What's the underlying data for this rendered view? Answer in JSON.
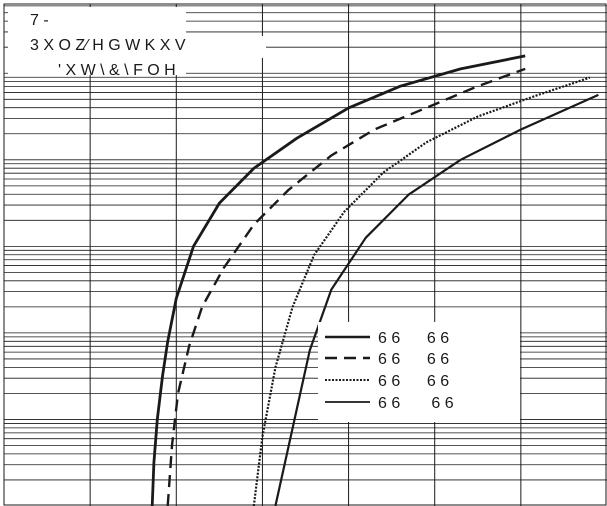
{
  "chart_data": {
    "type": "line",
    "title_lines": [
      "7 -",
      "3 X O Z∕ H G W K      X V",
      "' X W \\  & \\ F O H"
    ],
    "xlabel": "",
    "ylabel": "",
    "x_scale": "log",
    "y_scale": "log",
    "xlim": [
      0,
      7
    ],
    "ylim": [
      0,
      5.8
    ],
    "grid": true,
    "legend_position": "bottom-right",
    "series": [
      {
        "name": "6 6      6 6",
        "style": "solid",
        "x": [
          1.72,
          1.74,
          1.78,
          1.84,
          1.9,
          2.0,
          2.2,
          2.5,
          2.9,
          3.4,
          4.0,
          4.6,
          5.3,
          6.05
        ],
        "y": [
          0.0,
          0.5,
          1.0,
          1.5,
          1.9,
          2.4,
          3.0,
          3.5,
          3.9,
          4.25,
          4.6,
          4.85,
          5.05,
          5.2
        ]
      },
      {
        "name": "6 6      6 6",
        "style": "dashed",
        "x": [
          1.9,
          1.95,
          2.02,
          2.15,
          2.3,
          2.55,
          2.9,
          3.3,
          3.8,
          4.3,
          4.9,
          5.5,
          6.05
        ],
        "y": [
          0.0,
          0.7,
          1.3,
          1.85,
          2.3,
          2.75,
          3.25,
          3.65,
          4.05,
          4.35,
          4.6,
          4.85,
          5.05
        ]
      },
      {
        "name": "6 6      6 6",
        "style": "dotted",
        "x": [
          2.9,
          3.0,
          3.15,
          3.35,
          3.6,
          3.95,
          4.4,
          4.9,
          5.5,
          6.2,
          6.8
        ],
        "y": [
          0.0,
          0.8,
          1.6,
          2.3,
          2.9,
          3.4,
          3.85,
          4.2,
          4.5,
          4.75,
          4.95
        ]
      },
      {
        "name": "6 6       6 6",
        "style": "solid-thin",
        "x": [
          3.15,
          3.35,
          3.55,
          3.8,
          4.2,
          4.7,
          5.3,
          6.0,
          6.9
        ],
        "y": [
          0.0,
          0.9,
          1.8,
          2.5,
          3.1,
          3.6,
          4.0,
          4.35,
          4.75
        ]
      }
    ]
  }
}
